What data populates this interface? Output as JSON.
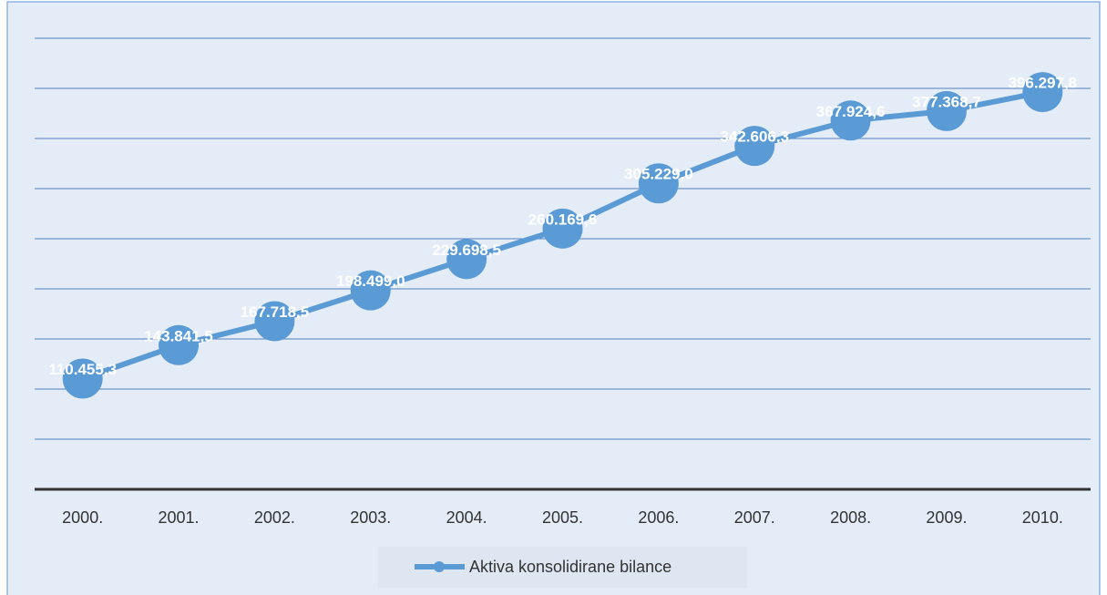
{
  "chart_data": {
    "type": "line",
    "categories": [
      "2000.",
      "2001.",
      "2002.",
      "2003.",
      "2004.",
      "2005.",
      "2006.",
      "2007.",
      "2008.",
      "2009.",
      "2010."
    ],
    "series": [
      {
        "name": "Aktiva konsolidirane bilance",
        "color": "#5b9bd5",
        "values": [
          110455.3,
          143841.5,
          167718.5,
          198499.0,
          229698.5,
          260169.6,
          305229.0,
          342606.3,
          367924.6,
          377368.7,
          396297.8
        ],
        "value_labels": [
          "110.455,3",
          "143.841,5",
          "167.718,5",
          "198.499,0",
          "229.698,5",
          "260.169,6",
          "305.229,0",
          "342.606,3",
          "367.924,6",
          "377.368,7",
          "396.297,8"
        ]
      }
    ],
    "ylim": [
      0,
      450000
    ],
    "yticks": [
      0,
      50000,
      100000,
      150000,
      200000,
      250000,
      300000,
      350000,
      400000,
      450000
    ],
    "grid": true,
    "legend": "bottom"
  }
}
